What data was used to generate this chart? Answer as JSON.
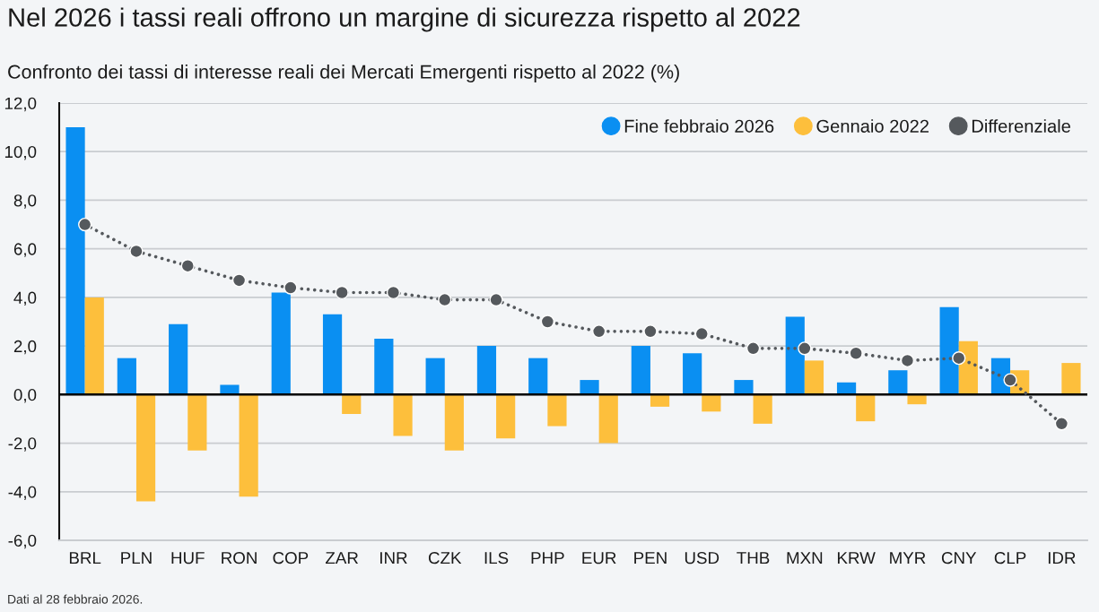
{
  "chart_data": {
    "type": "bar",
    "title": "Nel 2026 i tassi reali offrono un margine di sicurezza rispetto al 2022",
    "subtitle": "Confronto dei tassi di interesse reali dei Mercati Emergenti rispetto al 2022 (%)",
    "annotations": [
      "Dati al 28 febbraio 2026."
    ],
    "categories": [
      "BRL",
      "PLN",
      "HUF",
      "RON",
      "COP",
      "ZAR",
      "INR",
      "CZK",
      "ILS",
      "PHP",
      "EUR",
      "PEN",
      "USD",
      "THB",
      "MXN",
      "KRW",
      "MYR",
      "CNY",
      "CLP",
      "IDR"
    ],
    "series": [
      {
        "name": "Fine febbraio 2026",
        "color": "#0a8ff2",
        "values": [
          11.0,
          1.5,
          2.9,
          0.4,
          4.2,
          3.3,
          2.3,
          1.5,
          2.0,
          1.5,
          0.6,
          2.0,
          1.7,
          0.6,
          3.2,
          0.5,
          1.0,
          3.6,
          1.5,
          null
        ]
      },
      {
        "name": "Gennaio 2022",
        "color": "#fdbf3c",
        "values": [
          4.0,
          -4.4,
          -2.3,
          -4.2,
          null,
          -0.8,
          -1.7,
          -2.3,
          -1.8,
          -1.3,
          -2.0,
          -0.5,
          -0.7,
          -1.2,
          1.4,
          -1.1,
          -0.4,
          2.2,
          1.0,
          1.3
        ]
      },
      {
        "name": "Differenziale",
        "type": "line",
        "color": "#55595d",
        "marker": "circle",
        "line_style": "dotted",
        "values": [
          7.0,
          5.9,
          5.3,
          4.7,
          4.4,
          4.2,
          4.2,
          3.9,
          3.9,
          3.0,
          2.6,
          2.6,
          2.5,
          1.9,
          1.9,
          1.7,
          1.4,
          1.5,
          0.6,
          -1.2
        ]
      }
    ],
    "ylim": [
      -6,
      12
    ],
    "yticks": [
      {
        "value": -6,
        "label": "-6,0"
      },
      {
        "value": -4,
        "label": "-4,0"
      },
      {
        "value": -2,
        "label": "-2,0"
      },
      {
        "value": 0,
        "label": "0,0"
      },
      {
        "value": 2,
        "label": "2,0"
      },
      {
        "value": 4,
        "label": "4,0"
      },
      {
        "value": 6,
        "label": "6,0"
      },
      {
        "value": 8,
        "label": "8,0"
      },
      {
        "value": 10,
        "label": "10,0"
      },
      {
        "value": 12,
        "label": "12,0"
      }
    ],
    "grid": "y",
    "legend": "top right",
    "ref_lines": [
      {
        "axis": "y",
        "value": 0,
        "color": "#000000"
      }
    ]
  }
}
